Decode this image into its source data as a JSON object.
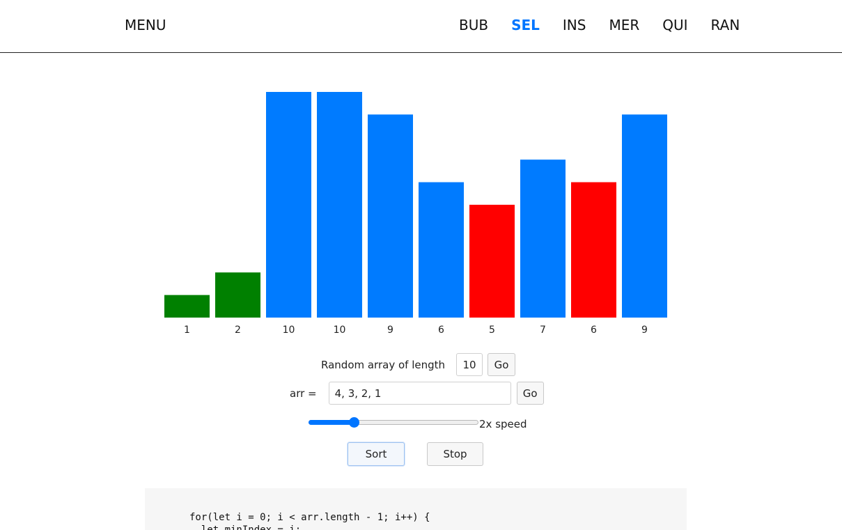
{
  "header": {
    "menu_label": "MENU",
    "nav": [
      {
        "label": "BUB",
        "active": false
      },
      {
        "label": "SEL",
        "active": true
      },
      {
        "label": "INS",
        "active": false
      },
      {
        "label": "MER",
        "active": false
      },
      {
        "label": "QUI",
        "active": false
      },
      {
        "label": "RAN",
        "active": false
      }
    ]
  },
  "colors": {
    "accent": "#0075ff",
    "sorted": "#008000",
    "comparing": "#ff0000",
    "unsorted": "#007bff"
  },
  "chart_data": {
    "type": "bar",
    "categories": [
      "1",
      "2",
      "10",
      "10",
      "9",
      "6",
      "5",
      "7",
      "6",
      "9"
    ],
    "values": [
      1,
      2,
      10,
      10,
      9,
      6,
      5,
      7,
      6,
      9
    ],
    "states": [
      "sorted",
      "sorted",
      "unsorted",
      "unsorted",
      "unsorted",
      "unsorted",
      "comparing",
      "unsorted",
      "comparing",
      "unsorted"
    ],
    "ylim": [
      0,
      10
    ],
    "grid": false,
    "legend": "none"
  },
  "controls": {
    "random_label": "Random array of length",
    "random_length": "10",
    "random_go": "Go",
    "arr_label": "arr =",
    "arr_value": "4, 3, 2, 1",
    "arr_go": "Go",
    "speed_label": "2x speed",
    "speed_fraction": 0.27,
    "sort_label": "Sort",
    "stop_label": "Stop"
  },
  "code": {
    "lines": [
      "for(let i = 0; i < arr.length - 1; i++) {",
      "  let minIndex = i;"
    ]
  }
}
